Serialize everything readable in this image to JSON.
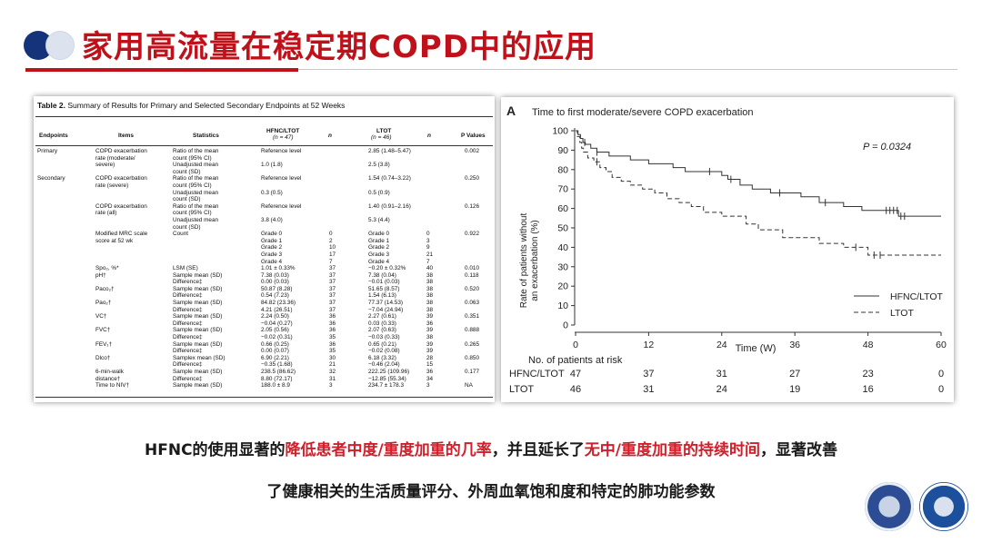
{
  "slide": {
    "title": "家用高流量在稳定期COPD中的应用",
    "caption_line1": {
      "part1": "HFNC的使用显著的",
      "red1": "降低患者中度/重度加重的几率",
      "part2": "，并且延长了",
      "red2": "无中/重度加重的持续时间",
      "part3": "，显著改善"
    },
    "caption_line2": "了健康相关的生活质量评分、外周血氧饱和度和特定的肺功能参数",
    "colors": {
      "title": "#c0111a",
      "accent_navy": "#15337a",
      "caption_red": "#d01f2a"
    }
  },
  "table": {
    "caption_bold": "Table 2.",
    "caption_rest": " Summary of Results for Primary and Selected Secondary Endpoints at 52 Weeks",
    "headers": {
      "endpoints": "Endpoints",
      "items": "Items",
      "statistics": "Statistics",
      "hfnc": "HFNC/LTOT",
      "hfnc_n": "(n = 47)",
      "n1": "n",
      "ltot": "LTOT",
      "ltot_n": "(n = 46)",
      "n2": "n",
      "p": "P Values"
    },
    "rows": [
      {
        "endpoint": "Primary",
        "item": "COPD exacerbation",
        "stat": "Ratio of the mean",
        "hfnc": "Reference level",
        "n1": "",
        "ltot": "2.85 (1.48–5.47)",
        "n2": "",
        "p": "0.002"
      },
      {
        "endpoint": "",
        "item": "rate (moderate/",
        "stat": "count (95% CI)",
        "hfnc": "",
        "n1": "",
        "ltot": "",
        "n2": "",
        "p": ""
      },
      {
        "endpoint": "",
        "item": "severe)",
        "stat": "Unadjusted mean",
        "hfnc": "1.0 (1.8)",
        "n1": "",
        "ltot": "2.5 (3.8)",
        "n2": "",
        "p": ""
      },
      {
        "endpoint": "",
        "item": "",
        "stat": "count (SD)",
        "hfnc": "",
        "n1": "",
        "ltot": "",
        "n2": "",
        "p": ""
      },
      {
        "endpoint": "Secondary",
        "item": "COPD exacerbation",
        "stat": "Ratio of the mean",
        "hfnc": "Reference level",
        "n1": "",
        "ltot": "1.54 (0.74–3.22)",
        "n2": "",
        "p": "0.250"
      },
      {
        "endpoint": "",
        "item": "rate (severe)",
        "stat": "count (95% CI)",
        "hfnc": "",
        "n1": "",
        "ltot": "",
        "n2": "",
        "p": ""
      },
      {
        "endpoint": "",
        "item": "",
        "stat": "Unadjusted mean",
        "hfnc": "0.3 (0.5)",
        "n1": "",
        "ltot": "0.5 (0.9)",
        "n2": "",
        "p": ""
      },
      {
        "endpoint": "",
        "item": "",
        "stat": "count (SD)",
        "hfnc": "",
        "n1": "",
        "ltot": "",
        "n2": "",
        "p": ""
      },
      {
        "endpoint": "",
        "item": "COPD exacerbation",
        "stat": "Ratio of the mean",
        "hfnc": "Reference level",
        "n1": "",
        "ltot": "1.40 (0.91–2.16)",
        "n2": "",
        "p": "0.126"
      },
      {
        "endpoint": "",
        "item": "rate (all)",
        "stat": "count (95% CI)",
        "hfnc": "",
        "n1": "",
        "ltot": "",
        "n2": "",
        "p": ""
      },
      {
        "endpoint": "",
        "item": "",
        "stat": "Unadjusted mean",
        "hfnc": "3.8 (4.0)",
        "n1": "",
        "ltot": "5.3 (4.4)",
        "n2": "",
        "p": ""
      },
      {
        "endpoint": "",
        "item": "",
        "stat": "count (SD)",
        "hfnc": "",
        "n1": "",
        "ltot": "",
        "n2": "",
        "p": ""
      },
      {
        "endpoint": "",
        "item": "Modified MRC scale",
        "stat": "Count",
        "hfnc": "Grade 0",
        "n1": "0",
        "ltot": "Grade 0",
        "n2": "0",
        "p": "0.922"
      },
      {
        "endpoint": "",
        "item": "score at 52 wk",
        "stat": "",
        "hfnc": "Grade 1",
        "n1": "2",
        "ltot": "Grade 1",
        "n2": "3",
        "p": ""
      },
      {
        "endpoint": "",
        "item": "",
        "stat": "",
        "hfnc": "Grade 2",
        "n1": "10",
        "ltot": "Grade 2",
        "n2": "9",
        "p": ""
      },
      {
        "endpoint": "",
        "item": "",
        "stat": "",
        "hfnc": "Grade 3",
        "n1": "17",
        "ltot": "Grade 3",
        "n2": "21",
        "p": ""
      },
      {
        "endpoint": "",
        "item": "",
        "stat": "",
        "hfnc": "Grade 4",
        "n1": "7",
        "ltot": "Grade 4",
        "n2": "7",
        "p": ""
      },
      {
        "endpoint": "",
        "item": "Spo₂, %*",
        "stat": "LSM (SE)",
        "hfnc": "1.01 ± 0.33%",
        "n1": "37",
        "ltot": "−0.20 ± 0.32%",
        "n2": "40",
        "p": "0.010"
      },
      {
        "endpoint": "",
        "item": "pH†",
        "stat": "Sample mean (SD)",
        "hfnc": "7.38 (0.03)",
        "n1": "37",
        "ltot": "7.38 (0.04)",
        "n2": "38",
        "p": "0.118"
      },
      {
        "endpoint": "",
        "item": "",
        "stat": "Difference‡",
        "hfnc": "0.00 (0.03)",
        "n1": "37",
        "ltot": "−0.01 (0.03)",
        "n2": "38",
        "p": ""
      },
      {
        "endpoint": "",
        "item": "Paco₂†",
        "stat": "Sample mean (SD)",
        "hfnc": "50.87 (8.28)",
        "n1": "37",
        "ltot": "51.65 (8.57)",
        "n2": "38",
        "p": "0.520"
      },
      {
        "endpoint": "",
        "item": "",
        "stat": "Difference‡",
        "hfnc": "0.54 (7.23)",
        "n1": "37",
        "ltot": "1.54 (6.13)",
        "n2": "38",
        "p": ""
      },
      {
        "endpoint": "",
        "item": "Pao₂†",
        "stat": "Sample mean (SD)",
        "hfnc": "84.82 (23.36)",
        "n1": "37",
        "ltot": "77.37 (14.53)",
        "n2": "38",
        "p": "0.063"
      },
      {
        "endpoint": "",
        "item": "",
        "stat": "Difference‡",
        "hfnc": "4.21 (26.51)",
        "n1": "37",
        "ltot": "−7.04 (24.94)",
        "n2": "38",
        "p": ""
      },
      {
        "endpoint": "",
        "item": "VC†",
        "stat": "Sample mean (SD)",
        "hfnc": "2.24 (0.50)",
        "n1": "36",
        "ltot": "2.27 (0.61)",
        "n2": "39",
        "p": "0.351"
      },
      {
        "endpoint": "",
        "item": "",
        "stat": "Difference‡",
        "hfnc": "−0.04 (0.27)",
        "n1": "36",
        "ltot": "0.03 (0.33)",
        "n2": "36",
        "p": ""
      },
      {
        "endpoint": "",
        "item": "FVC†",
        "stat": "Sample mean (SD)",
        "hfnc": "2.05 (0.56)",
        "n1": "36",
        "ltot": "2.07 (0.63)",
        "n2": "39",
        "p": "0.888"
      },
      {
        "endpoint": "",
        "item": "",
        "stat": "Difference‡",
        "hfnc": "−0.02 (0.31)",
        "n1": "35",
        "ltot": "−0.03 (0.33)",
        "n2": "38",
        "p": ""
      },
      {
        "endpoint": "",
        "item": "FEV₁†",
        "stat": "Sample mean (SD)",
        "hfnc": "0.66 (0.25)",
        "n1": "36",
        "ltot": "0.65 (0.21)",
        "n2": "39",
        "p": "0.265"
      },
      {
        "endpoint": "",
        "item": "",
        "stat": "Difference‡",
        "hfnc": "0.00 (0.07)",
        "n1": "35",
        "ltot": "−0.02 (0.08)",
        "n2": "39",
        "p": ""
      },
      {
        "endpoint": "",
        "item": "Dlco†",
        "stat": "Samplex mean (SD)",
        "hfnc": "6.90 (2.21)",
        "n1": "30",
        "ltot": "6.18 (3.32)",
        "n2": "28",
        "p": "0.850"
      },
      {
        "endpoint": "",
        "item": "",
        "stat": "Difference‡",
        "hfnc": "−0.35 (1.68)",
        "n1": "21",
        "ltot": "−0.46 (2.04)",
        "n2": "15",
        "p": ""
      },
      {
        "endpoint": "",
        "item": "6-min-walk",
        "stat": "Sample mean (SD)",
        "hfnc": "238.5 (86.62)",
        "n1": "32",
        "ltot": "222.25 (109.96)",
        "n2": "36",
        "p": "0.177"
      },
      {
        "endpoint": "",
        "item": "distance†",
        "stat": "Difference‡",
        "hfnc": "8.80 (72.17)",
        "n1": "31",
        "ltot": "−12.85 (55.34)",
        "n2": "34",
        "p": ""
      },
      {
        "endpoint": "",
        "item": "Time to NIV†",
        "stat": "Sample mean (SD)",
        "hfnc": "188.0 ± 8.9",
        "n1": "3",
        "ltot": "234.7 ± 178.3",
        "n2": "3",
        "p": "NA"
      }
    ]
  },
  "chart_data": {
    "type": "line",
    "panel_label": "A",
    "title": "Time to first moderate/severe COPD exacerbation",
    "xlabel": "Time (W)",
    "ylabel": "Rate of patients without an exacerbation (%)",
    "ylabel_line1": "Rate of patients without",
    "ylabel_line2": "an exacerbation (%)",
    "xlim": [
      0,
      60
    ],
    "ylim": [
      0,
      100
    ],
    "x_ticks": [
      0,
      12,
      24,
      36,
      48,
      60
    ],
    "y_ticks": [
      0,
      10,
      20,
      30,
      40,
      50,
      60,
      70,
      80,
      90,
      100
    ],
    "annotation": "P = 0.0324",
    "legend_position": "bottom-right",
    "series": [
      {
        "name": "HFNC/LTOT",
        "style": "solid",
        "x": [
          0,
          0.4,
          0.8,
          1.2,
          1.6,
          2.5,
          3.5,
          5.5,
          9,
          12,
          16,
          18,
          24,
          25,
          27,
          29,
          32,
          37,
          40,
          44,
          47,
          53,
          60
        ],
        "values": [
          100,
          98,
          96,
          94,
          93,
          91,
          89,
          87,
          85,
          83,
          81,
          79,
          77,
          75,
          72,
          70,
          68,
          66,
          63,
          61,
          59,
          56,
          56
        ],
        "censor_x": [
          1.5,
          3.5,
          22,
          25.5,
          33.5,
          41,
          51,
          51.6,
          52.2,
          52.8,
          53.4,
          54
        ]
      },
      {
        "name": "LTOT",
        "style": "dashed",
        "x": [
          0,
          0.3,
          0.7,
          1,
          1.3,
          2,
          3,
          4,
          5,
          6,
          7.5,
          9,
          11,
          13,
          15,
          17,
          19,
          21,
          24,
          28,
          30,
          34,
          40,
          44,
          48,
          60
        ],
        "values": [
          100,
          97,
          94,
          91,
          89,
          86,
          84,
          81,
          79,
          76,
          74,
          72,
          70,
          68,
          65,
          63,
          61,
          58,
          56,
          52,
          49,
          45,
          42,
          40,
          36,
          36
        ],
        "censor_x": [
          3.5,
          46,
          49,
          50
        ]
      }
    ],
    "risk_table": {
      "title": "No. of patients at risk",
      "rows": [
        {
          "label": "HFNC/LTOT",
          "values": [
            47,
            37,
            31,
            27,
            23,
            0
          ]
        },
        {
          "label": "LTOT",
          "values": [
            46,
            31,
            24,
            19,
            16,
            0
          ]
        }
      ]
    }
  }
}
